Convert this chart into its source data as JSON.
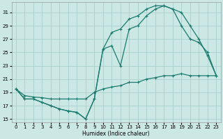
{
  "xlabel": "Humidex (Indice chaleur)",
  "bg_color": "#cce8e5",
  "grid_color": "#aacfcc",
  "line_color": "#1a7a6e",
  "xlim": [
    -0.5,
    23.5
  ],
  "ylim": [
    14.5,
    32.5
  ],
  "xticks": [
    0,
    1,
    2,
    3,
    4,
    5,
    6,
    7,
    8,
    9,
    10,
    11,
    12,
    13,
    14,
    15,
    16,
    17,
    18,
    19,
    20,
    21,
    22,
    23
  ],
  "yticks": [
    15,
    17,
    19,
    21,
    23,
    25,
    27,
    29,
    31
  ],
  "line1": {
    "x": [
      0,
      1,
      2,
      3,
      4,
      5,
      6,
      7,
      8,
      9,
      10,
      11,
      12,
      13,
      14,
      15,
      16,
      17,
      18,
      19,
      20,
      21,
      22,
      23
    ],
    "y": [
      19.5,
      18.0,
      18.0,
      17.5,
      17.0,
      16.5,
      16.2,
      16.0,
      15.0,
      18.0,
      25.5,
      26.0,
      23.0,
      28.5,
      29.0,
      30.5,
      31.5,
      32.0,
      31.5,
      29.0,
      27.0,
      26.5,
      25.0,
      21.5
    ]
  },
  "line2": {
    "x": [
      0,
      1,
      2,
      3,
      4,
      5,
      6,
      7,
      8,
      9,
      10,
      11,
      12,
      13,
      14,
      15,
      16,
      17,
      18,
      19,
      20,
      21,
      22,
      23
    ],
    "y": [
      19.5,
      18.0,
      18.0,
      17.5,
      17.0,
      16.5,
      16.2,
      16.0,
      15.0,
      18.0,
      25.5,
      28.0,
      28.5,
      30.0,
      30.5,
      31.5,
      32.0,
      32.0,
      31.5,
      31.0,
      29.0,
      27.0,
      24.5,
      21.5
    ]
  },
  "line3": {
    "x": [
      0,
      1,
      2,
      3,
      4,
      5,
      6,
      7,
      8,
      9,
      10,
      11,
      12,
      13,
      14,
      15,
      16,
      17,
      18,
      19,
      20,
      21,
      22,
      23
    ],
    "y": [
      19.5,
      18.5,
      18.3,
      18.2,
      18.0,
      18.0,
      18.0,
      18.0,
      18.0,
      19.0,
      19.5,
      19.8,
      20.0,
      20.5,
      20.5,
      21.0,
      21.2,
      21.5,
      21.5,
      21.8,
      21.5,
      21.5,
      21.5,
      21.5
    ]
  }
}
